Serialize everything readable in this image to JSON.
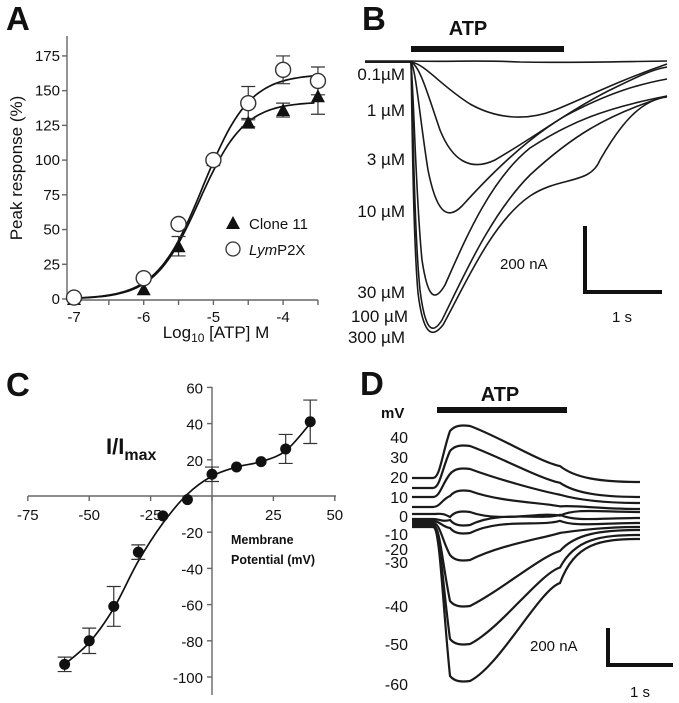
{
  "figure": {
    "panels": [
      "A",
      "B",
      "C",
      "D"
    ]
  },
  "chart_data": [
    {
      "panel": "A",
      "type": "scatter",
      "title": "",
      "xlabel_main": "Log",
      "xlabel_sub": "10",
      "xlabel_rest": " [ATP] M",
      "ylabel": "Peak response (%)",
      "xlim": [
        -7,
        -3.5
      ],
      "ylim": [
        0,
        190
      ],
      "x_ticks": [
        -7,
        -6.5,
        -6,
        -5.5,
        -5,
        -4.5,
        -4,
        -3.5
      ],
      "x_tick_labels": [
        {
          "value": -7,
          "label": "-7"
        },
        {
          "value": -6,
          "label": "-6"
        },
        {
          "value": -5,
          "label": "-5"
        },
        {
          "value": -4,
          "label": "-4"
        }
      ],
      "y_ticks": [
        {
          "value": 0,
          "label": "0"
        },
        {
          "value": 25,
          "label": "25"
        },
        {
          "value": 50,
          "label": "50"
        },
        {
          "value": 75,
          "label": "75"
        },
        {
          "value": 100,
          "label": "100"
        },
        {
          "value": 125,
          "label": "125"
        },
        {
          "value": 150,
          "label": "150"
        },
        {
          "value": 175,
          "label": "175"
        }
      ],
      "legend_position": "lower-right",
      "series": [
        {
          "name": "Clone 11",
          "name_italic": "",
          "name_rest": "Clone 11",
          "marker": "filled-triangle",
          "x": [
            -7,
            -6,
            -5.5,
            -5,
            -4.5,
            -4,
            -3.5
          ],
          "values": [
            0,
            7,
            38,
            100,
            127,
            136,
            146
          ],
          "errors": [
            0,
            0,
            7,
            0,
            3,
            5,
            13
          ],
          "fit": {
            "bottom": 0,
            "top": 142,
            "logEC50": -5.2,
            "hill": 1.35
          }
        },
        {
          "name": "LymP2X",
          "name_italic": "Lym",
          "name_rest": "P2X",
          "marker": "open-circle",
          "x": [
            -7,
            -6,
            -5.5,
            -5,
            -4.5,
            -4,
            -3.5
          ],
          "values": [
            1,
            15,
            54,
            100,
            141,
            165,
            157
          ],
          "errors": [
            0,
            0,
            0,
            0,
            12,
            10,
            10
          ],
          "fit": {
            "bottom": 0,
            "top": 162,
            "logEC50": -5.15,
            "hill": 1.3
          }
        }
      ]
    },
    {
      "panel": "B",
      "type": "line",
      "title": "ATP",
      "description": "Current traces evoked by increasing ATP concentrations",
      "series": [
        {
          "name": "0.1µM",
          "label": "0.1µM",
          "relative_peak_nA": 0
        },
        {
          "name": "1 µM",
          "label": "1 µM",
          "relative_peak_nA": -170
        },
        {
          "name": "3 µM",
          "label": "3 µM",
          "relative_peak_nA": -310
        },
        {
          "name": "10 µM",
          "label": "10 µM",
          "relative_peak_nA": -470
        },
        {
          "name": "30 µM",
          "label": "30 µM",
          "relative_peak_nA": -700
        },
        {
          "name": "100 µM",
          "label": "100 µM",
          "relative_peak_nA": -790
        },
        {
          "name": "300 µM",
          "label": "300 µM",
          "relative_peak_nA": -800
        }
      ],
      "scale_bar": {
        "current": "200 nA",
        "time": "1 s"
      }
    },
    {
      "panel": "C",
      "type": "scatter",
      "title": "",
      "ylabel_main": "I/I",
      "ylabel_sub": "max",
      "xlabel_line1": "Membrane",
      "xlabel_line2": "Potential (mV)",
      "xlim": [
        -75,
        50
      ],
      "ylim": [
        -110,
        60
      ],
      "x_ticks": [
        {
          "value": -75,
          "label": "-75"
        },
        {
          "value": -50,
          "label": "-50"
        },
        {
          "value": -25,
          "label": "-25"
        },
        {
          "value": 25,
          "label": "25"
        },
        {
          "value": 50,
          "label": "50"
        }
      ],
      "y_ticks": [
        {
          "value": 60,
          "label": "60"
        },
        {
          "value": 40,
          "label": "40"
        },
        {
          "value": 20,
          "label": "20"
        },
        {
          "value": -20,
          "label": "-20"
        },
        {
          "value": -40,
          "label": "-40"
        },
        {
          "value": -60,
          "label": "-60"
        },
        {
          "value": -80,
          "label": "-80"
        },
        {
          "value": -100,
          "label": "-100"
        }
      ],
      "series": [
        {
          "name": "I/Imax",
          "marker": "filled-circle",
          "x": [
            -60,
            -50,
            -40,
            -30,
            -20,
            -10,
            0,
            10,
            20,
            30,
            40
          ],
          "values": [
            -93,
            -80,
            -61,
            -31,
            -11,
            -2,
            12,
            16,
            19,
            26,
            41
          ],
          "errors": [
            4,
            7,
            11,
            4,
            0,
            0,
            4,
            0,
            0,
            8,
            12
          ]
        }
      ]
    },
    {
      "panel": "D",
      "type": "line",
      "title": "ATP",
      "unit_label": "mV",
      "description": "Current traces at holding potentials from -60 to +40 mV",
      "series": [
        {
          "name": "40",
          "label": "40",
          "relative_peak_nA": 260
        },
        {
          "name": "30",
          "label": "30",
          "relative_peak_nA": 190
        },
        {
          "name": "20",
          "label": "20",
          "relative_peak_nA": 130
        },
        {
          "name": "10",
          "label": "10",
          "relative_peak_nA": 60
        },
        {
          "name": "0",
          "label": "0",
          "relative_peak_nA": 15
        },
        {
          "name": "-10",
          "label": "-10",
          "relative_peak_nA": -15
        },
        {
          "name": "-20",
          "label": "-20",
          "relative_peak_nA": -40
        },
        {
          "name": "-30",
          "label": "-30",
          "relative_peak_nA": -130
        },
        {
          "name": "-40",
          "label": "-40",
          "relative_peak_nA": -290
        },
        {
          "name": "-50",
          "label": "-50",
          "relative_peak_nA": -410
        },
        {
          "name": "-60",
          "label": "-60",
          "relative_peak_nA": -510
        }
      ],
      "scale_bar": {
        "current": "200 nA",
        "time": "1 s"
      }
    }
  ]
}
